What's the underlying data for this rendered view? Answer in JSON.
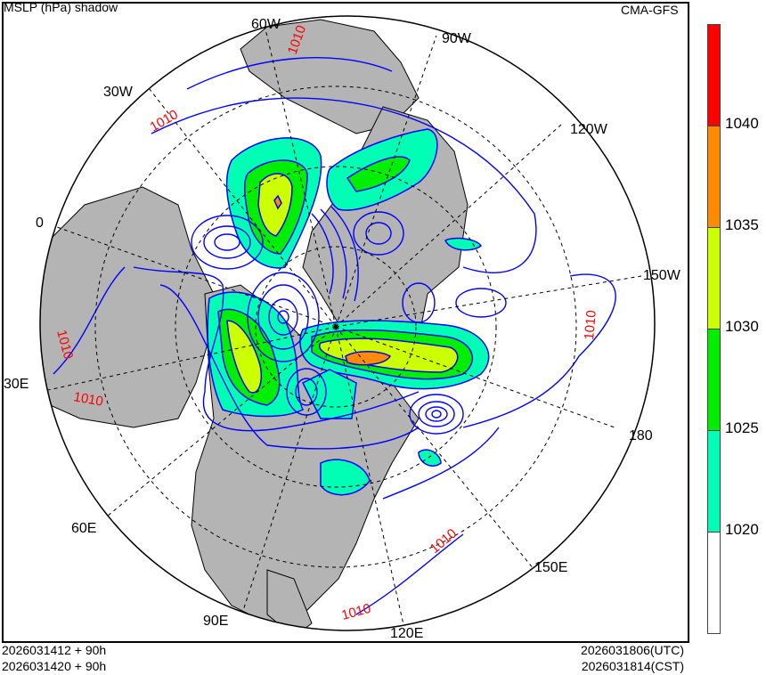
{
  "header": {
    "title": "MSLP (hPa) shadow",
    "model": "CMA-GFS"
  },
  "footer": {
    "init_utc": "2026031412 + 90h",
    "init_cst": "2026031420 + 90h",
    "valid_utc": "2026031806(UTC)",
    "valid_cst": "2026031814(CST)"
  },
  "longitude_labels": [
    "60W",
    "90W",
    "30W",
    "120W",
    "0",
    "150W",
    "30E",
    "180",
    "60E",
    "150E",
    "90E",
    "120E"
  ],
  "contour_labels": [
    "1010",
    "1010",
    "1010",
    "1010",
    "1010",
    "1010",
    "1010"
  ],
  "legend": {
    "levels": [
      "1040",
      "1035",
      "1030",
      "1025",
      "1020"
    ],
    "colors": [
      "#ff0000",
      "#ff8c00",
      "#ccff00",
      "#00ee00",
      "#00ffb4",
      "#ffffff"
    ]
  },
  "colors": {
    "land": "#b4b4b4",
    "contour": "#0000ff",
    "contour_label": "#ff0000"
  }
}
